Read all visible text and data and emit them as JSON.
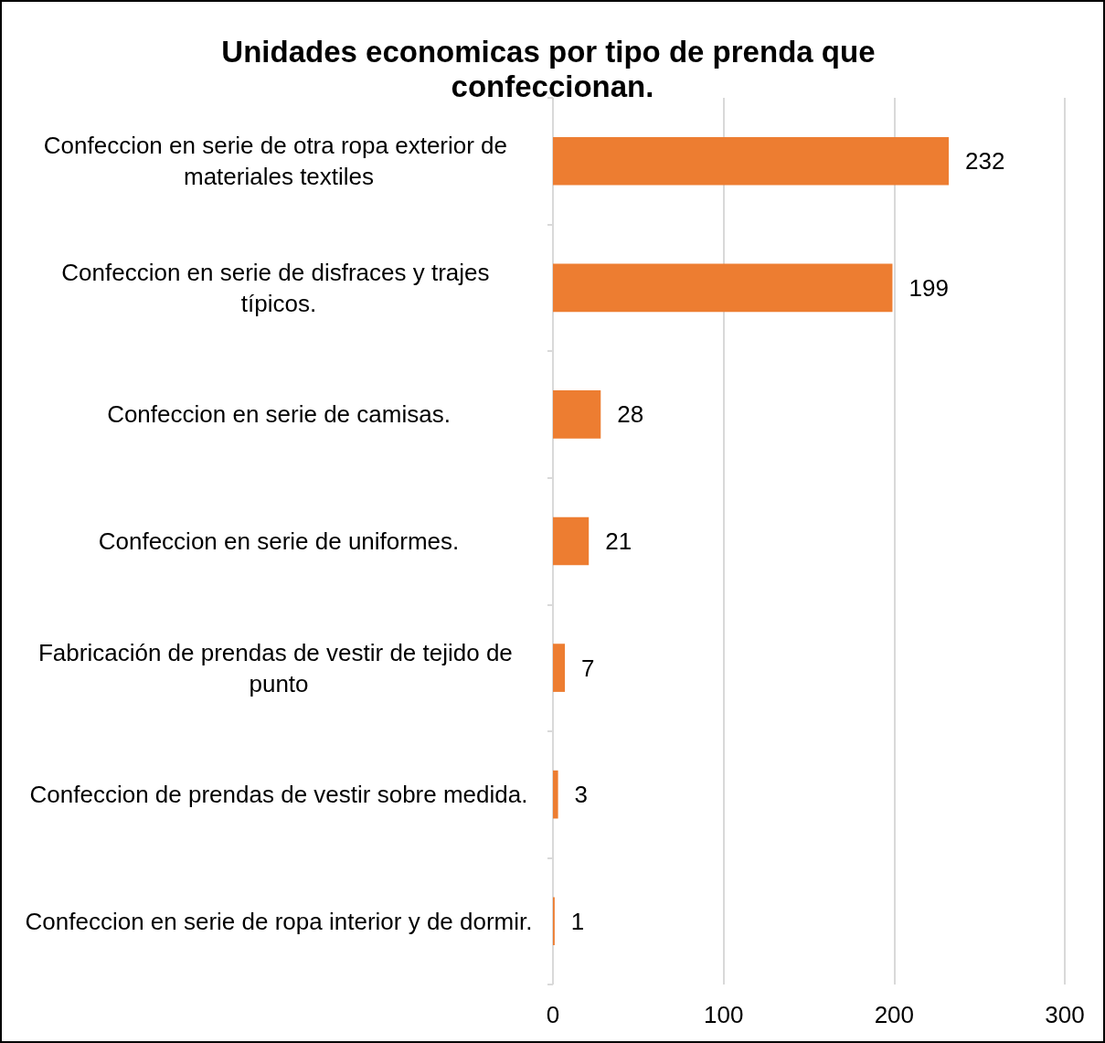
{
  "chart_data": {
    "type": "bar",
    "orientation": "horizontal",
    "title": "Unidades economicas por tipo de prenda que confeccionan.",
    "categories": [
      "Confeccion en serie de otra ropa exterior de materiales textiles",
      "Confeccion en serie de disfraces y trajes típicos.",
      "Confeccion en serie de camisas.",
      "Confeccion en serie de uniformes.",
      "Fabricación de prendas de vestir de tejido de punto",
      "Confeccion de prendas de vestir sobre medida.",
      "Confeccion en serie de ropa interior y de dormir."
    ],
    "values": [
      232,
      199,
      28,
      21,
      7,
      3,
      1
    ],
    "color": "#ed7d31",
    "xlim": [
      0,
      300
    ],
    "xticks": [
      0,
      100,
      200,
      300
    ],
    "grid": "x",
    "data_labels": true
  }
}
